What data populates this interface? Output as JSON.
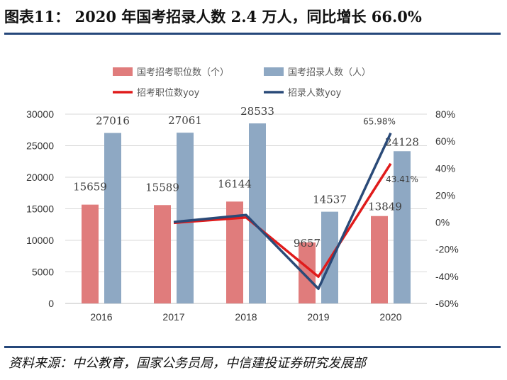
{
  "title": "图表11：  2020 年国考招录人数 2.4 万人，同比增长 66.0%",
  "source": "资料来源：中公教育，国家公务员局，中信建投证券研究发展部",
  "chart_data": {
    "type": "bar",
    "categories": [
      "2016",
      "2017",
      "2018",
      "2019",
      "2020"
    ],
    "series": [
      {
        "name": "国考招考职位数（个）",
        "type": "bar",
        "axis": "left",
        "color": "#e07c7c",
        "values": [
          15659,
          15589,
          16144,
          9657,
          13849
        ],
        "labels": [
          "15659",
          "15589",
          "16144",
          "9657",
          "13849"
        ]
      },
      {
        "name": "国考招录人数（人）",
        "type": "bar",
        "axis": "left",
        "color": "#8ea8c3",
        "values": [
          27016,
          27061,
          28533,
          14537,
          24128
        ],
        "labels": [
          "27016",
          "27061",
          "28533",
          "14537",
          "24128"
        ]
      },
      {
        "name": "招考职位数yoy",
        "type": "line",
        "axis": "right",
        "color": "#e01b1b",
        "x": [
          "2017",
          "2018",
          "2019",
          "2020"
        ],
        "values": [
          -0.4,
          3.6,
          -40.2,
          43.41
        ],
        "point_label": {
          "x": "2020",
          "text": "43.41%"
        }
      },
      {
        "name": "招录人数yoy",
        "type": "line",
        "axis": "right",
        "color": "#2a4a78",
        "x": [
          "2017",
          "2018",
          "2019",
          "2020"
        ],
        "values": [
          0.2,
          5.4,
          -49.1,
          65.98
        ],
        "point_label": {
          "x": "2020",
          "text": "65.98%"
        }
      }
    ],
    "y_left": {
      "min": 0,
      "max": 30000,
      "ticks": [
        "0",
        "5000",
        "10000",
        "15000",
        "20000",
        "25000",
        "30000"
      ]
    },
    "y_right": {
      "min": -60,
      "max": 80,
      "ticks": [
        "-60%",
        "-40%",
        "-20%",
        "0%",
        "20%",
        "40%",
        "60%",
        "80%"
      ]
    },
    "grid": true,
    "legend_position": "top"
  }
}
